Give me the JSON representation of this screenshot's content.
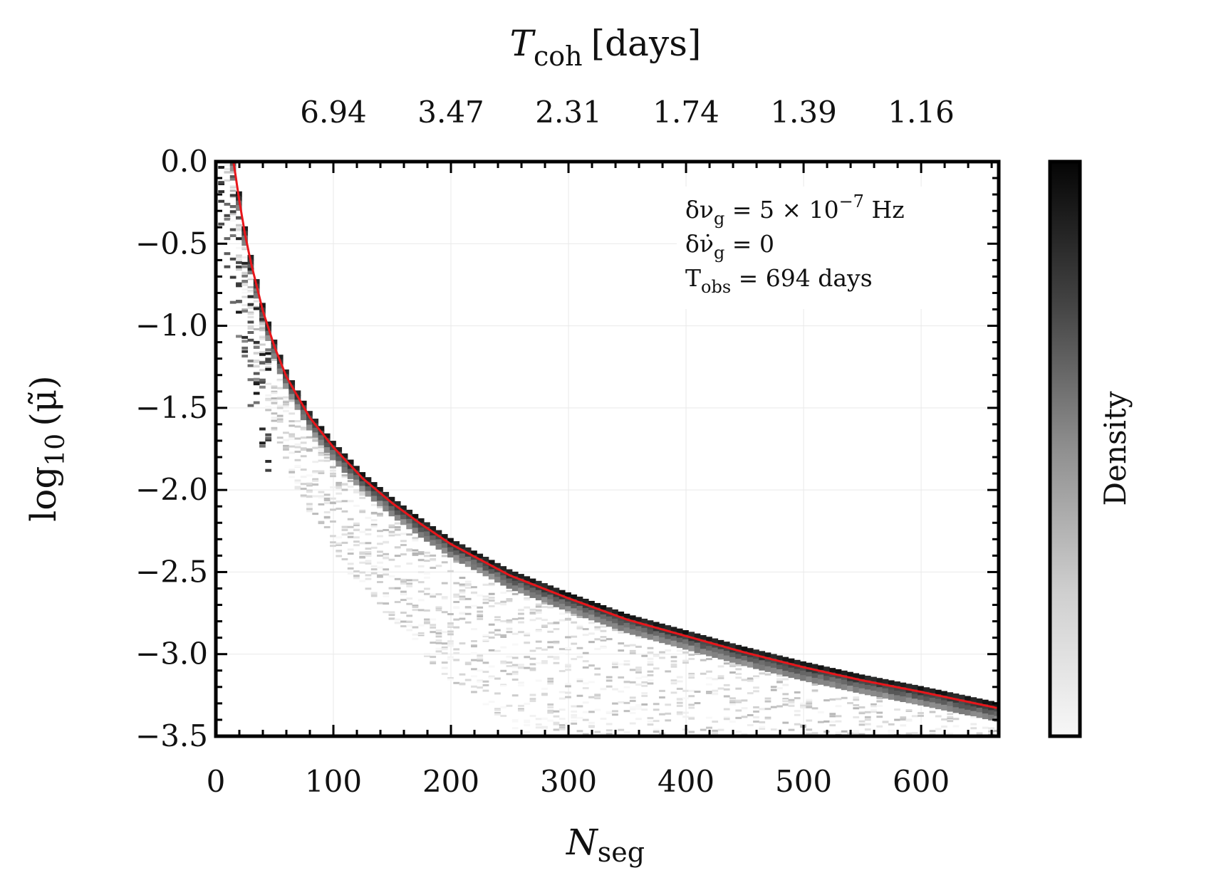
{
  "chart_data": {
    "type": "heatmap",
    "title": "",
    "xlabel": {
      "main": "N",
      "sub": "seg"
    },
    "ylabel": {
      "main": "log",
      "sub": "10",
      "rest": "(μ̃)"
    },
    "top_xlabel": {
      "main": "T",
      "sub": "coh",
      "rest": "[days]"
    },
    "xlim": [
      0,
      666
    ],
    "ylim": [
      -3.5,
      0.0
    ],
    "x_ticks": [
      0,
      100,
      200,
      300,
      400,
      500,
      600
    ],
    "x_tick_labels": [
      "0",
      "100",
      "200",
      "300",
      "400",
      "500",
      "600"
    ],
    "y_ticks": [
      0.0,
      -0.5,
      -1.0,
      -1.5,
      -2.0,
      -2.5,
      -3.0,
      -3.5
    ],
    "y_tick_labels": [
      "0.0",
      "−0.5",
      "−1.0",
      "−1.5",
      "−2.0",
      "−2.5",
      "−3.0",
      "−3.5"
    ],
    "top_ticks": [
      100,
      200,
      300,
      400,
      500,
      600
    ],
    "top_tick_labels": [
      "6.94",
      "3.47",
      "2.31",
      "1.74",
      "1.39",
      "1.16"
    ],
    "annotations": [
      {
        "a": "δν",
        "sub": "g",
        "b": " = 5 × 10",
        "sup": "−7",
        "c": " Hz"
      },
      {
        "a": "δν̇",
        "sub": "g",
        "b": " = 0",
        "sup": "",
        "c": ""
      },
      {
        "a": "T",
        "sub": "obs",
        "b": " = 694 days",
        "sup": "",
        "c": ""
      }
    ],
    "fit_curve": {
      "color": "#e8161b",
      "x": [
        15,
        20,
        25,
        30,
        40,
        50,
        60,
        80,
        100,
        125,
        150,
        175,
        200,
        250,
        300,
        350,
        400,
        450,
        500,
        550,
        600,
        666
      ],
      "y": [
        0.0,
        -0.24,
        -0.45,
        -0.62,
        -0.91,
        -1.13,
        -1.31,
        -1.56,
        -1.74,
        -1.93,
        -2.08,
        -2.21,
        -2.33,
        -2.52,
        -2.66,
        -2.79,
        -2.89,
        -2.99,
        -3.08,
        -3.16,
        -3.23,
        -3.33
      ]
    },
    "colorbar": {
      "label": "Density",
      "colormap": "grays"
    },
    "grid": true
  }
}
